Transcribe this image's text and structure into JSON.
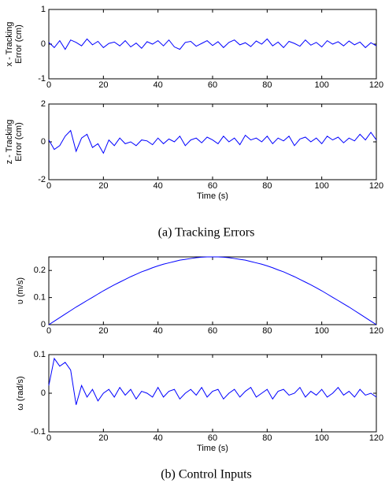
{
  "chart_data": [
    {
      "type": "line",
      "ylabel": [
        "x - Tracking",
        "Error (cm)"
      ],
      "color": "#0000ff",
      "xlim": [
        0,
        120
      ],
      "xticks": [
        0,
        20,
        40,
        60,
        80,
        100,
        120
      ],
      "ylim": [
        -1,
        1
      ],
      "yticks": [
        -1,
        0,
        1
      ],
      "x": [
        0,
        2,
        4,
        6,
        8,
        10,
        12,
        14,
        16,
        18,
        20,
        22,
        24,
        26,
        28,
        30,
        32,
        34,
        36,
        38,
        40,
        42,
        44,
        46,
        48,
        50,
        52,
        54,
        56,
        58,
        60,
        62,
        64,
        66,
        68,
        70,
        72,
        74,
        76,
        78,
        80,
        82,
        84,
        86,
        88,
        90,
        92,
        94,
        96,
        98,
        100,
        102,
        104,
        106,
        108,
        110,
        112,
        114,
        116,
        118,
        120
      ],
      "values": [
        0.05,
        -0.1,
        0.1,
        -0.15,
        0.12,
        0.05,
        -0.05,
        0.15,
        -0.02,
        0.08,
        -0.1,
        0.02,
        0.06,
        -0.05,
        0.1,
        -0.08,
        0.03,
        -0.12,
        0.07,
        0.0,
        0.1,
        -0.05,
        0.12,
        -0.08,
        -0.15,
        0.05,
        0.08,
        -0.06,
        0.02,
        0.1,
        -0.04,
        0.07,
        -0.1,
        0.05,
        0.12,
        -0.02,
        0.04,
        -0.07,
        0.09,
        0.0,
        0.15,
        -0.05,
        0.06,
        -0.1,
        0.08,
        0.02,
        -0.06,
        0.12,
        -0.03,
        0.05,
        -0.08,
        0.1,
        0.0,
        0.07,
        -0.05,
        0.09,
        -0.02,
        0.06,
        -0.1,
        0.04,
        -0.05
      ]
    },
    {
      "type": "line",
      "ylabel": [
        "z - Tracking",
        "Error (cm)"
      ],
      "xlabel": "Time (s)",
      "color": "#0000ff",
      "xlim": [
        0,
        120
      ],
      "xticks": [
        0,
        20,
        40,
        60,
        80,
        100,
        120
      ],
      "ylim": [
        -2,
        2
      ],
      "yticks": [
        -2,
        0,
        2
      ],
      "x": [
        0,
        2,
        4,
        6,
        8,
        10,
        12,
        14,
        16,
        18,
        20,
        22,
        24,
        26,
        28,
        30,
        32,
        34,
        36,
        38,
        40,
        42,
        44,
        46,
        48,
        50,
        52,
        54,
        56,
        58,
        60,
        62,
        64,
        66,
        68,
        70,
        72,
        74,
        76,
        78,
        80,
        82,
        84,
        86,
        88,
        90,
        92,
        94,
        96,
        98,
        100,
        102,
        104,
        106,
        108,
        110,
        112,
        114,
        116,
        118,
        120
      ],
      "values": [
        0.1,
        -0.4,
        -0.2,
        0.3,
        0.6,
        -0.5,
        0.2,
        0.4,
        -0.3,
        -0.1,
        -0.6,
        0.1,
        -0.2,
        0.2,
        -0.1,
        0.0,
        -0.2,
        0.1,
        0.05,
        -0.15,
        0.2,
        -0.1,
        0.15,
        0.0,
        0.3,
        -0.2,
        0.1,
        0.2,
        -0.05,
        0.25,
        0.1,
        -0.1,
        0.3,
        0.0,
        0.2,
        -0.15,
        0.35,
        0.1,
        0.2,
        0.0,
        0.3,
        -0.1,
        0.2,
        0.05,
        0.3,
        -0.2,
        0.15,
        0.25,
        0.0,
        0.2,
        -0.1,
        0.3,
        0.1,
        0.25,
        -0.05,
        0.2,
        0.05,
        0.4,
        0.1,
        0.5,
        0.1
      ]
    },
    {
      "type": "line",
      "ylabel": [
        "υ (m/s)"
      ],
      "color": "#0000ff",
      "xlim": [
        0,
        120
      ],
      "xticks": [
        0,
        20,
        40,
        60,
        80,
        100,
        120
      ],
      "ylim": [
        0,
        0.25
      ],
      "yticks": [
        0,
        0.1,
        0.2
      ],
      "x": [
        0,
        2,
        4,
        6,
        8,
        10,
        12,
        14,
        16,
        18,
        20,
        22,
        24,
        26,
        28,
        30,
        32,
        34,
        36,
        38,
        40,
        42,
        44,
        46,
        48,
        50,
        52,
        54,
        56,
        58,
        60,
        62,
        64,
        66,
        68,
        70,
        72,
        74,
        76,
        78,
        80,
        82,
        84,
        86,
        88,
        90,
        92,
        94,
        96,
        98,
        100,
        102,
        104,
        106,
        108,
        110,
        112,
        114,
        116,
        118,
        120
      ],
      "values": [
        0,
        0.013,
        0.026,
        0.039,
        0.052,
        0.065,
        0.077,
        0.089,
        0.101,
        0.113,
        0.125,
        0.136,
        0.147,
        0.157,
        0.167,
        0.177,
        0.186,
        0.195,
        0.202,
        0.21,
        0.217,
        0.223,
        0.228,
        0.233,
        0.238,
        0.241,
        0.244,
        0.247,
        0.249,
        0.25,
        0.25,
        0.25,
        0.249,
        0.247,
        0.244,
        0.241,
        0.238,
        0.233,
        0.228,
        0.223,
        0.217,
        0.21,
        0.202,
        0.195,
        0.186,
        0.177,
        0.167,
        0.157,
        0.147,
        0.136,
        0.125,
        0.113,
        0.101,
        0.089,
        0.077,
        0.065,
        0.052,
        0.039,
        0.026,
        0.013,
        0
      ]
    },
    {
      "type": "line",
      "ylabel": [
        "ω (rad/s)"
      ],
      "xlabel": "Time (s)",
      "color": "#0000ff",
      "xlim": [
        0,
        120
      ],
      "xticks": [
        0,
        20,
        40,
        60,
        80,
        100,
        120
      ],
      "ylim": [
        -0.1,
        0.1
      ],
      "yticks": [
        -0.1,
        0,
        0.1
      ],
      "x": [
        0,
        2,
        4,
        6,
        8,
        10,
        12,
        14,
        16,
        18,
        20,
        22,
        24,
        26,
        28,
        30,
        32,
        34,
        36,
        38,
        40,
        42,
        44,
        46,
        48,
        50,
        52,
        54,
        56,
        58,
        60,
        62,
        64,
        66,
        68,
        70,
        72,
        74,
        76,
        78,
        80,
        82,
        84,
        86,
        88,
        90,
        92,
        94,
        96,
        98,
        100,
        102,
        104,
        106,
        108,
        110,
        112,
        114,
        116,
        118,
        120
      ],
      "values": [
        0.02,
        0.09,
        0.07,
        0.08,
        0.06,
        -0.03,
        0.02,
        -0.01,
        0.01,
        -0.02,
        0.0,
        0.01,
        -0.01,
        0.015,
        -0.005,
        0.01,
        -0.015,
        0.005,
        0.0,
        -0.01,
        0.015,
        -0.01,
        0.005,
        0.01,
        -0.015,
        0.0,
        0.01,
        -0.005,
        0.015,
        -0.01,
        0.005,
        0.01,
        -0.015,
        0.0,
        0.01,
        -0.01,
        0.005,
        0.015,
        -0.01,
        0.0,
        0.01,
        -0.015,
        0.005,
        0.01,
        -0.005,
        0.0,
        0.015,
        -0.01,
        0.005,
        -0.005,
        0.01,
        -0.01,
        0.0,
        0.015,
        -0.005,
        0.005,
        -0.01,
        0.01,
        -0.005,
        0.0,
        -0.01
      ]
    }
  ],
  "captions": [
    "(a) Tracking Errors",
    "(b) Control Inputs"
  ]
}
